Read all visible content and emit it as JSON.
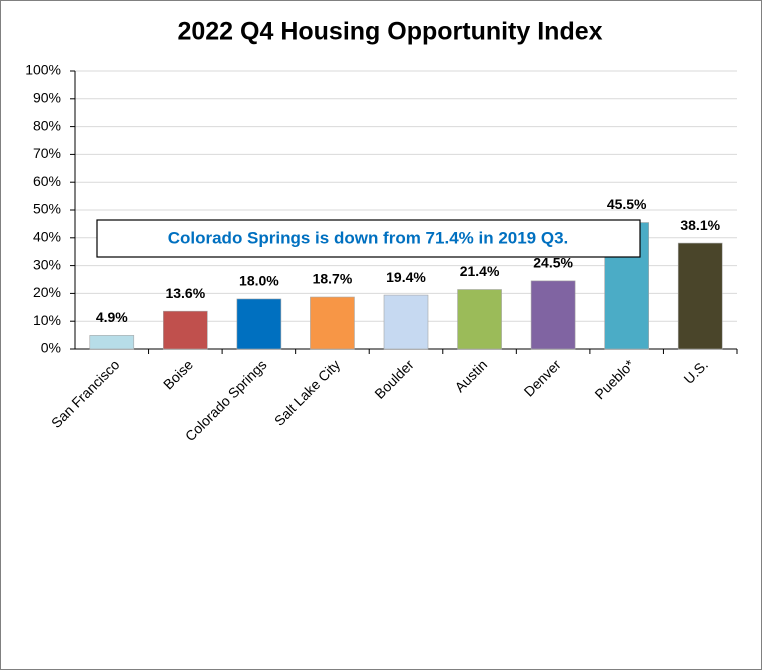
{
  "chart_data": {
    "type": "bar",
    "title": "2022 Q4 Housing Opportunity Index",
    "categories": [
      "San Francisco",
      "Boise",
      "Colorado Springs",
      "Salt Lake City",
      "Boulder",
      "Austin",
      "Denver",
      "Pueblo*",
      "U.S."
    ],
    "values": [
      4.9,
      13.6,
      18.0,
      18.7,
      19.4,
      21.4,
      24.5,
      45.5,
      38.1
    ],
    "value_labels": [
      "4.9%",
      "13.6%",
      "18.0%",
      "18.7%",
      "19.4%",
      "21.4%",
      "24.5%",
      "45.5%",
      "38.1%"
    ],
    "colors": [
      "#b7dde8",
      "#c0504d",
      "#0070c0",
      "#f79646",
      "#c6d9f1",
      "#9bbb59",
      "#8064a2",
      "#4bacc6",
      "#4a452a"
    ],
    "ylim": [
      0,
      100
    ],
    "yticks": [
      {
        "value": 0,
        "label": "0%"
      },
      {
        "value": 10,
        "label": "10%"
      },
      {
        "value": 20,
        "label": "20%"
      },
      {
        "value": 30,
        "label": "30%"
      },
      {
        "value": 40,
        "label": "40%"
      },
      {
        "value": 50,
        "label": "50%"
      },
      {
        "value": 60,
        "label": "60%"
      },
      {
        "value": 70,
        "label": "70%"
      },
      {
        "value": 80,
        "label": "80%"
      },
      {
        "value": 90,
        "label": "90%"
      },
      {
        "value": 100,
        "label": "100%"
      }
    ],
    "grid": true,
    "annotation": "Colorado Springs is down from 71.4% in 2019 Q3."
  }
}
